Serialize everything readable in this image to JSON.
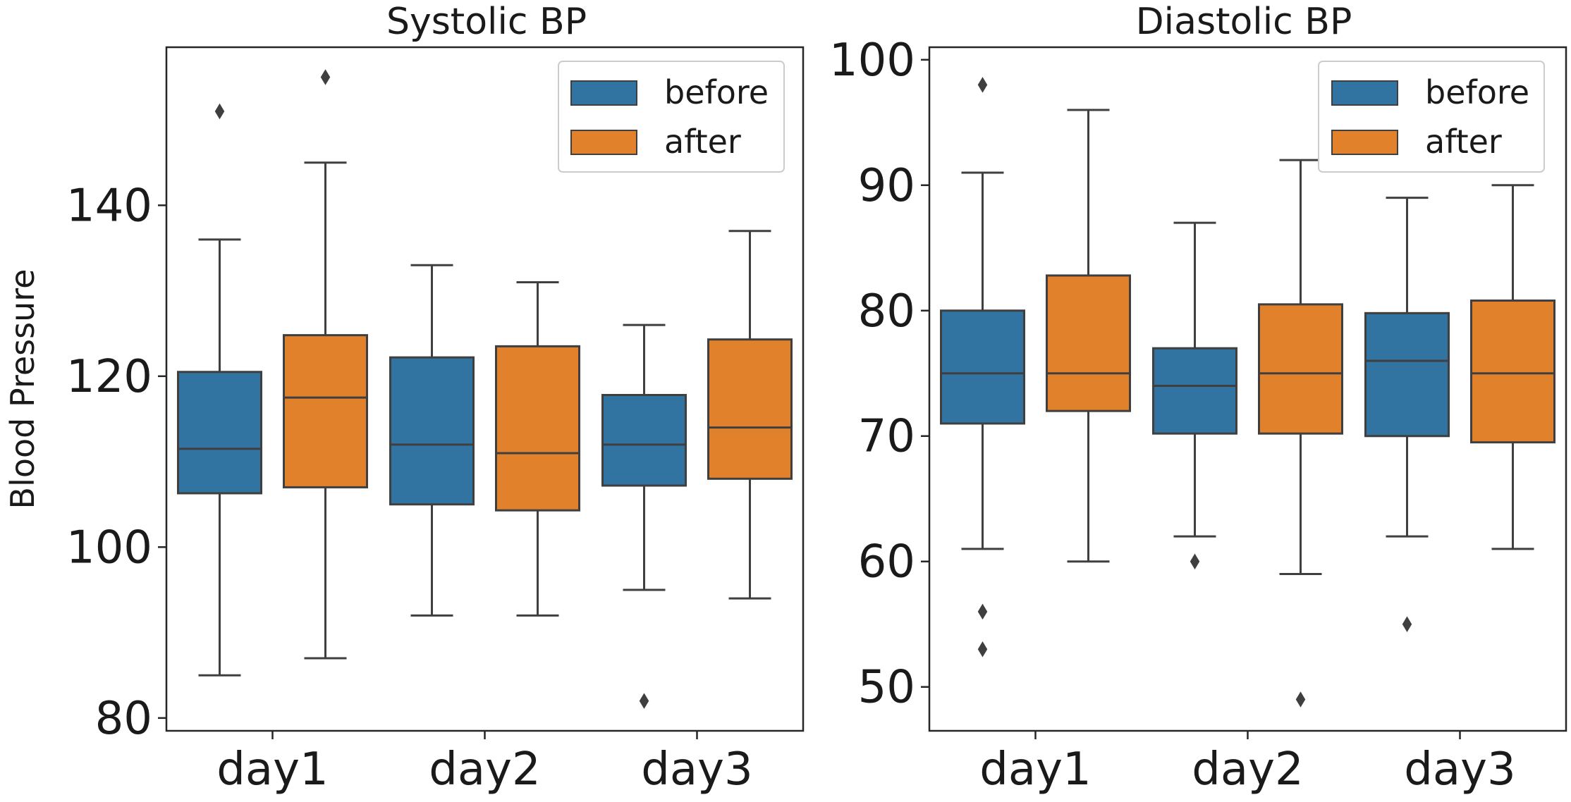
{
  "chart_data": [
    {
      "type": "box",
      "title": "Systolic BP",
      "xlabel": "",
      "ylabel": "Blood Pressure",
      "ylim": [
        78.5,
        158.5
      ],
      "yticks": [
        80,
        100,
        120,
        140
      ],
      "ytick_labels": [
        "80",
        "100",
        "120",
        "140"
      ],
      "categories": [
        "day1",
        "day2",
        "day3"
      ],
      "legend": {
        "placement": "top-right",
        "entries": [
          "before",
          "after"
        ]
      },
      "series": [
        {
          "name": "before",
          "color": "#3274a1",
          "boxes": [
            {
              "whisker_low": 85,
              "q1": 106.3,
              "median": 111.5,
              "q3": 120.5,
              "whisker_high": 136,
              "outliers": [
                151
              ]
            },
            {
              "whisker_low": 92,
              "q1": 105,
              "median": 112,
              "q3": 122.2,
              "whisker_high": 133,
              "outliers": []
            },
            {
              "whisker_low": 95,
              "q1": 107.2,
              "median": 112,
              "q3": 117.8,
              "whisker_high": 126,
              "outliers": [
                82
              ]
            }
          ]
        },
        {
          "name": "after",
          "color": "#e1812c",
          "boxes": [
            {
              "whisker_low": 87,
              "q1": 107,
              "median": 117.5,
              "q3": 124.8,
              "whisker_high": 145,
              "outliers": [
                155
              ]
            },
            {
              "whisker_low": 92,
              "q1": 104.3,
              "median": 111,
              "q3": 123.5,
              "whisker_high": 131,
              "outliers": []
            },
            {
              "whisker_low": 94,
              "q1": 108,
              "median": 114,
              "q3": 124.3,
              "whisker_high": 137,
              "outliers": []
            }
          ]
        }
      ]
    },
    {
      "type": "box",
      "title": "Diastolic BP",
      "xlabel": "",
      "ylabel": "",
      "ylim": [
        46.5,
        101
      ],
      "yticks": [
        50,
        60,
        70,
        80,
        90,
        100
      ],
      "ytick_labels": [
        "50",
        "60",
        "70",
        "80",
        "90",
        "100"
      ],
      "categories": [
        "day1",
        "day2",
        "day3"
      ],
      "legend": {
        "placement": "top-right",
        "entries": [
          "before",
          "after"
        ]
      },
      "series": [
        {
          "name": "before",
          "color": "#3274a1",
          "boxes": [
            {
              "whisker_low": 61,
              "q1": 71,
              "median": 75,
              "q3": 80,
              "whisker_high": 91,
              "outliers": [
                56,
                53,
                98
              ]
            },
            {
              "whisker_low": 62,
              "q1": 70.2,
              "median": 74,
              "q3": 77,
              "whisker_high": 87,
              "outliers": [
                60
              ]
            },
            {
              "whisker_low": 62,
              "q1": 70,
              "median": 76,
              "q3": 79.8,
              "whisker_high": 89,
              "outliers": [
                55
              ]
            }
          ]
        },
        {
          "name": "after",
          "color": "#e1812c",
          "boxes": [
            {
              "whisker_low": 60,
              "q1": 72,
              "median": 75,
              "q3": 82.8,
              "whisker_high": 96,
              "outliers": []
            },
            {
              "whisker_low": 59,
              "q1": 70.2,
              "median": 75,
              "q3": 80.5,
              "whisker_high": 92,
              "outliers": [
                49
              ]
            },
            {
              "whisker_low": 61,
              "q1": 69.5,
              "median": 75,
              "q3": 80.8,
              "whisker_high": 90,
              "outliers": []
            }
          ]
        }
      ]
    }
  ]
}
